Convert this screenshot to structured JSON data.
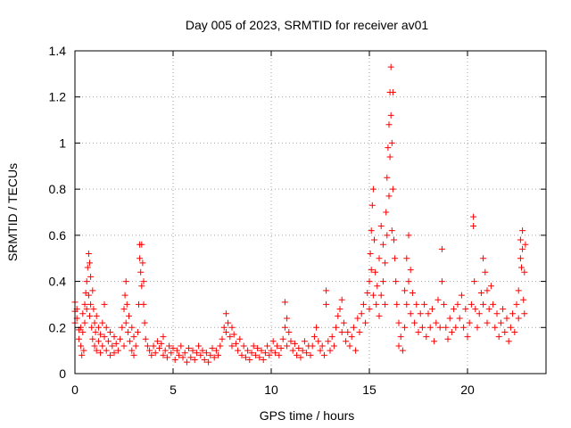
{
  "chart_data": {
    "type": "scatter",
    "title": "Day 005 of 2023, SRMTID for receiver av01",
    "xlabel": "GPS time / hours",
    "ylabel": "SRMTID / TECUs",
    "xlim": [
      0,
      24
    ],
    "ylim": [
      0,
      1.4
    ],
    "xticks": [
      0,
      5,
      10,
      15,
      20
    ],
    "xtick_labels": [
      "0",
      "5",
      "10",
      "15",
      "20"
    ],
    "yticks": [
      0,
      0.2,
      0.4,
      0.6,
      0.8,
      1.0,
      1.2,
      1.4
    ],
    "ytick_labels": [
      "0",
      "0.2",
      "0.4",
      "0.6",
      "0.8",
      "1",
      "1.2",
      "1.4"
    ],
    "grid": true,
    "marker": "+",
    "series_color": "#ff0000",
    "series": [
      {
        "name": "SRMTID",
        "points": [
          [
            0.0,
            0.31
          ],
          [
            0.0,
            0.27
          ],
          [
            0.0,
            0.22
          ],
          [
            0.1,
            0.28
          ],
          [
            0.1,
            0.24
          ],
          [
            0.2,
            0.19
          ],
          [
            0.2,
            0.15
          ],
          [
            0.3,
            0.2
          ],
          [
            0.3,
            0.12
          ],
          [
            0.35,
            0.08
          ],
          [
            0.4,
            0.18
          ],
          [
            0.4,
            0.26
          ],
          [
            0.45,
            0.1
          ],
          [
            0.5,
            0.22
          ],
          [
            0.5,
            0.3
          ],
          [
            0.55,
            0.35
          ],
          [
            0.6,
            0.4
          ],
          [
            0.6,
            0.28
          ],
          [
            0.65,
            0.46
          ],
          [
            0.7,
            0.52
          ],
          [
            0.7,
            0.34
          ],
          [
            0.75,
            0.48
          ],
          [
            0.75,
            0.25
          ],
          [
            0.8,
            0.42
          ],
          [
            0.8,
            0.3
          ],
          [
            0.85,
            0.2
          ],
          [
            0.9,
            0.36
          ],
          [
            0.9,
            0.15
          ],
          [
            0.95,
            0.28
          ],
          [
            1.0,
            0.22
          ],
          [
            1.0,
            0.12
          ],
          [
            1.05,
            0.18
          ],
          [
            1.1,
            0.25
          ],
          [
            1.1,
            0.1
          ],
          [
            1.2,
            0.2
          ],
          [
            1.2,
            0.14
          ],
          [
            1.3,
            0.17
          ],
          [
            1.3,
            0.09
          ],
          [
            1.4,
            0.22
          ],
          [
            1.4,
            0.12
          ],
          [
            1.5,
            0.3
          ],
          [
            1.5,
            0.16
          ],
          [
            1.6,
            0.2
          ],
          [
            1.6,
            0.1
          ],
          [
            1.7,
            0.14
          ],
          [
            1.8,
            0.18
          ],
          [
            1.8,
            0.08
          ],
          [
            1.9,
            0.12
          ],
          [
            2.0,
            0.16
          ],
          [
            2.0,
            0.09
          ],
          [
            2.1,
            0.13
          ],
          [
            2.2,
            0.1
          ],
          [
            2.3,
            0.15
          ],
          [
            2.4,
            0.2
          ],
          [
            2.5,
            0.28
          ],
          [
            2.5,
            0.12
          ],
          [
            2.55,
            0.34
          ],
          [
            2.6,
            0.4
          ],
          [
            2.6,
            0.22
          ],
          [
            2.65,
            0.3
          ],
          [
            2.7,
            0.18
          ],
          [
            2.75,
            0.25
          ],
          [
            2.8,
            0.14
          ],
          [
            2.9,
            0.2
          ],
          [
            2.9,
            0.1
          ],
          [
            3.0,
            0.16
          ],
          [
            3.0,
            0.08
          ],
          [
            3.1,
            0.12
          ],
          [
            3.2,
            0.18
          ],
          [
            3.25,
            0.3
          ],
          [
            3.3,
            0.56
          ],
          [
            3.3,
            0.5
          ],
          [
            3.35,
            0.44
          ],
          [
            3.4,
            0.56
          ],
          [
            3.4,
            0.38
          ],
          [
            3.45,
            0.48
          ],
          [
            3.5,
            0.4
          ],
          [
            3.5,
            0.3
          ],
          [
            3.55,
            0.22
          ],
          [
            3.6,
            0.15
          ],
          [
            3.7,
            0.12
          ],
          [
            3.8,
            0.1
          ],
          [
            3.9,
            0.08
          ],
          [
            4.0,
            0.12
          ],
          [
            4.1,
            0.09
          ],
          [
            4.2,
            0.14
          ],
          [
            4.3,
            0.11
          ],
          [
            4.4,
            0.13
          ],
          [
            4.5,
            0.16
          ],
          [
            4.5,
            0.08
          ],
          [
            4.6,
            0.1
          ],
          [
            4.7,
            0.07
          ],
          [
            4.8,
            0.12
          ],
          [
            4.9,
            0.09
          ],
          [
            5.0,
            0.11
          ],
          [
            5.1,
            0.06
          ],
          [
            5.2,
            0.1
          ],
          [
            5.3,
            0.08
          ],
          [
            5.4,
            0.12
          ],
          [
            5.5,
            0.07
          ],
          [
            5.6,
            0.09
          ],
          [
            5.7,
            0.05
          ],
          [
            5.8,
            0.11
          ],
          [
            5.9,
            0.07
          ],
          [
            6.0,
            0.1
          ],
          [
            6.1,
            0.06
          ],
          [
            6.2,
            0.09
          ],
          [
            6.3,
            0.12
          ],
          [
            6.4,
            0.08
          ],
          [
            6.5,
            0.1
          ],
          [
            6.6,
            0.06
          ],
          [
            6.7,
            0.09
          ],
          [
            6.8,
            0.05
          ],
          [
            6.9,
            0.08
          ],
          [
            7.0,
            0.11
          ],
          [
            7.1,
            0.07
          ],
          [
            7.2,
            0.1
          ],
          [
            7.3,
            0.08
          ],
          [
            7.4,
            0.12
          ],
          [
            7.5,
            0.15
          ],
          [
            7.6,
            0.2
          ],
          [
            7.7,
            0.26
          ],
          [
            7.7,
            0.18
          ],
          [
            7.8,
            0.22
          ],
          [
            7.9,
            0.16
          ],
          [
            8.0,
            0.2
          ],
          [
            8.0,
            0.12
          ],
          [
            8.1,
            0.17
          ],
          [
            8.2,
            0.13
          ],
          [
            8.3,
            0.1
          ],
          [
            8.4,
            0.15
          ],
          [
            8.5,
            0.08
          ],
          [
            8.6,
            0.12
          ],
          [
            8.7,
            0.07
          ],
          [
            8.8,
            0.1
          ],
          [
            8.9,
            0.06
          ],
          [
            9.0,
            0.09
          ],
          [
            9.1,
            0.12
          ],
          [
            9.2,
            0.08
          ],
          [
            9.3,
            0.11
          ],
          [
            9.4,
            0.07
          ],
          [
            9.5,
            0.1
          ],
          [
            9.6,
            0.06
          ],
          [
            9.7,
            0.09
          ],
          [
            9.8,
            0.12
          ],
          [
            9.9,
            0.08
          ],
          [
            10.0,
            0.1
          ],
          [
            10.1,
            0.14
          ],
          [
            10.2,
            0.09
          ],
          [
            10.3,
            0.12
          ],
          [
            10.4,
            0.08
          ],
          [
            10.5,
            0.11
          ],
          [
            10.6,
            0.15
          ],
          [
            10.7,
            0.2
          ],
          [
            10.7,
            0.31
          ],
          [
            10.8,
            0.24
          ],
          [
            10.8,
            0.12
          ],
          [
            10.9,
            0.18
          ],
          [
            11.0,
            0.14
          ],
          [
            11.1,
            0.1
          ],
          [
            11.2,
            0.13
          ],
          [
            11.3,
            0.08
          ],
          [
            11.4,
            0.11
          ],
          [
            11.5,
            0.07
          ],
          [
            11.6,
            0.1
          ],
          [
            11.7,
            0.14
          ],
          [
            11.8,
            0.09
          ],
          [
            11.9,
            0.12
          ],
          [
            12.0,
            0.08
          ],
          [
            12.1,
            0.12
          ],
          [
            12.2,
            0.16
          ],
          [
            12.3,
            0.2
          ],
          [
            12.4,
            0.14
          ],
          [
            12.5,
            0.1
          ],
          [
            12.6,
            0.12
          ],
          [
            12.7,
            0.08
          ],
          [
            12.8,
            0.36
          ],
          [
            12.8,
            0.3
          ],
          [
            12.9,
            0.14
          ],
          [
            13.0,
            0.1
          ],
          [
            13.1,
            0.16
          ],
          [
            13.2,
            0.12
          ],
          [
            13.3,
            0.2
          ],
          [
            13.4,
            0.25
          ],
          [
            13.5,
            0.28
          ],
          [
            13.6,
            0.32
          ],
          [
            13.6,
            0.18
          ],
          [
            13.7,
            0.22
          ],
          [
            13.8,
            0.14
          ],
          [
            13.9,
            0.18
          ],
          [
            14.0,
            0.12
          ],
          [
            14.1,
            0.16
          ],
          [
            14.2,
            0.2
          ],
          [
            14.3,
            0.1
          ],
          [
            14.4,
            0.24
          ],
          [
            14.5,
            0.18
          ],
          [
            14.6,
            0.26
          ],
          [
            14.7,
            0.3
          ],
          [
            14.8,
            0.22
          ],
          [
            14.9,
            0.35
          ],
          [
            15.0,
            0.4
          ],
          [
            15.0,
            0.28
          ],
          [
            15.05,
            0.52
          ],
          [
            15.1,
            0.62
          ],
          [
            15.1,
            0.45
          ],
          [
            15.15,
            0.73
          ],
          [
            15.2,
            0.8
          ],
          [
            15.2,
            0.34
          ],
          [
            15.25,
            0.58
          ],
          [
            15.3,
            0.44
          ],
          [
            15.35,
            0.3
          ],
          [
            15.4,
            0.38
          ],
          [
            15.5,
            0.5
          ],
          [
            15.5,
            0.25
          ],
          [
            15.6,
            0.64
          ],
          [
            15.6,
            0.34
          ],
          [
            15.7,
            0.56
          ],
          [
            15.7,
            0.4
          ],
          [
            15.8,
            0.48
          ],
          [
            15.8,
            0.3
          ],
          [
            15.85,
            0.7
          ],
          [
            15.9,
            0.85
          ],
          [
            15.9,
            0.6
          ],
          [
            15.95,
            0.98
          ],
          [
            16.0,
            1.08
          ],
          [
            16.0,
            0.77
          ],
          [
            16.05,
            1.22
          ],
          [
            16.05,
            0.94
          ],
          [
            16.1,
            1.33
          ],
          [
            16.1,
            1.12
          ],
          [
            16.15,
            1.0
          ],
          [
            16.15,
            0.62
          ],
          [
            16.2,
            1.22
          ],
          [
            16.2,
            0.8
          ],
          [
            16.25,
            0.58
          ],
          [
            16.3,
            0.5
          ],
          [
            16.35,
            0.4
          ],
          [
            16.4,
            0.3
          ],
          [
            16.5,
            0.22
          ],
          [
            16.5,
            0.12
          ],
          [
            16.6,
            0.16
          ],
          [
            16.7,
            0.1
          ],
          [
            16.8,
            0.36
          ],
          [
            16.8,
            0.2
          ],
          [
            16.9,
            0.5
          ],
          [
            16.9,
            0.3
          ],
          [
            17.0,
            0.6
          ],
          [
            17.0,
            0.4
          ],
          [
            17.1,
            0.45
          ],
          [
            17.1,
            0.26
          ],
          [
            17.2,
            0.35
          ],
          [
            17.3,
            0.22
          ],
          [
            17.4,
            0.3
          ],
          [
            17.5,
            0.18
          ],
          [
            17.6,
            0.26
          ],
          [
            17.7,
            0.2
          ],
          [
            17.8,
            0.3
          ],
          [
            17.9,
            0.16
          ],
          [
            18.0,
            0.26
          ],
          [
            18.1,
            0.2
          ],
          [
            18.2,
            0.28
          ],
          [
            18.3,
            0.14
          ],
          [
            18.4,
            0.22
          ],
          [
            18.5,
            0.32
          ],
          [
            18.6,
            0.2
          ],
          [
            18.7,
            0.54
          ],
          [
            18.7,
            0.4
          ],
          [
            18.8,
            0.3
          ],
          [
            18.9,
            0.2
          ],
          [
            19.0,
            0.15
          ],
          [
            19.1,
            0.24
          ],
          [
            19.2,
            0.18
          ],
          [
            19.3,
            0.28
          ],
          [
            19.4,
            0.2
          ],
          [
            19.5,
            0.3
          ],
          [
            19.6,
            0.24
          ],
          [
            19.7,
            0.34
          ],
          [
            19.8,
            0.2
          ],
          [
            19.9,
            0.28
          ],
          [
            20.0,
            0.16
          ],
          [
            20.1,
            0.22
          ],
          [
            20.2,
            0.3
          ],
          [
            20.3,
            0.68
          ],
          [
            20.3,
            0.64
          ],
          [
            20.35,
            0.4
          ],
          [
            20.4,
            0.28
          ],
          [
            20.5,
            0.2
          ],
          [
            20.6,
            0.26
          ],
          [
            20.7,
            0.35
          ],
          [
            20.8,
            0.5
          ],
          [
            20.8,
            0.3
          ],
          [
            20.9,
            0.44
          ],
          [
            21.0,
            0.36
          ],
          [
            21.0,
            0.22
          ],
          [
            21.1,
            0.28
          ],
          [
            21.2,
            0.38
          ],
          [
            21.3,
            0.3
          ],
          [
            21.4,
            0.2
          ],
          [
            21.5,
            0.26
          ],
          [
            21.6,
            0.16
          ],
          [
            21.7,
            0.22
          ],
          [
            21.8,
            0.28
          ],
          [
            21.9,
            0.18
          ],
          [
            22.0,
            0.24
          ],
          [
            22.1,
            0.14
          ],
          [
            22.2,
            0.2
          ],
          [
            22.3,
            0.26
          ],
          [
            22.4,
            0.18
          ],
          [
            22.5,
            0.3
          ],
          [
            22.6,
            0.36
          ],
          [
            22.6,
            0.24
          ],
          [
            22.7,
            0.5
          ],
          [
            22.7,
            0.58
          ],
          [
            22.75,
            0.46
          ],
          [
            22.8,
            0.62
          ],
          [
            22.8,
            0.54
          ],
          [
            22.85,
            0.32
          ],
          [
            22.9,
            0.44
          ],
          [
            22.9,
            0.26
          ],
          [
            22.95,
            0.56
          ]
        ]
      }
    ]
  }
}
